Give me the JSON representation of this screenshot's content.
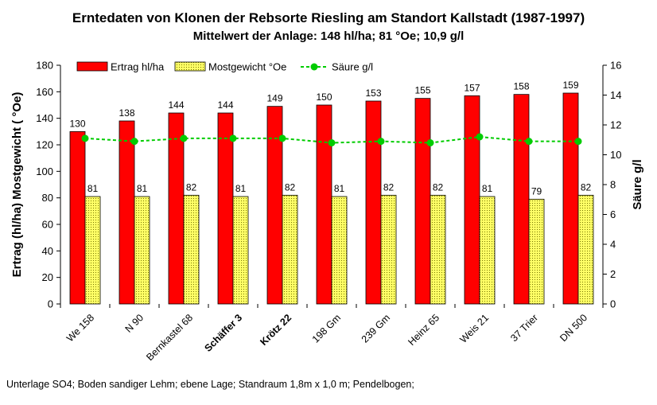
{
  "chart_data": {
    "type": "bar",
    "title": "Erntedaten von Klonen der Rebsorte Riesling am Standort Kallstadt  (1987-1997)",
    "subtitle": "Mittelwert der Anlage: 148 hl/ha; 81 °Oe; 10,9 g/l",
    "ylabel": "Ertrag (hl/ha)   Mostgewicht ( °Oe)",
    "y2label": "Säure g/l",
    "ylim": [
      0,
      180
    ],
    "yticks": [
      "0",
      "20",
      "40",
      "60",
      "80",
      "100",
      "120",
      "140",
      "160",
      "180"
    ],
    "y2lim": [
      0,
      16
    ],
    "y2ticks": [
      "0",
      "2",
      "4",
      "6",
      "8",
      "10",
      "12",
      "14",
      "16"
    ],
    "categories": [
      "We 158",
      "N 90",
      "Bernkastel 68",
      "Schäffer 3",
      "Krötz 22",
      "198 Gm",
      "239 Gm",
      "Heinz 65",
      "Weis 21",
      "37 Trier",
      "DN 500"
    ],
    "bold_categories": [
      "Schäffer 3",
      "Krötz 22"
    ],
    "series": [
      {
        "name": "Ertrag hl/ha",
        "axis": "left",
        "kind": "bar",
        "color": "#ff0000",
        "values": [
          130,
          138,
          144,
          144,
          149,
          150,
          153,
          155,
          157,
          158,
          159
        ]
      },
      {
        "name": "Mostgewicht °Oe",
        "axis": "left",
        "kind": "bar",
        "color": "#ffff66",
        "values": [
          81,
          81,
          82,
          81,
          82,
          81,
          82,
          82,
          81,
          79,
          82
        ]
      },
      {
        "name": "Säure g/l",
        "axis": "right",
        "kind": "line",
        "color": "#00cc00",
        "values": [
          11.1,
          10.9,
          11.1,
          11.1,
          11.1,
          10.8,
          10.9,
          10.8,
          11.2,
          10.9,
          10.9
        ]
      }
    ],
    "data_labels_shown": [
      "Ertrag hl/ha",
      "Mostgewicht °Oe"
    ],
    "legend_position": "top",
    "grid": false,
    "footnote": "Unterlage SO4; Boden sandiger Lehm; ebene Lage; Standraum 1,8m x 1,0 m; Pendelbogen;"
  }
}
